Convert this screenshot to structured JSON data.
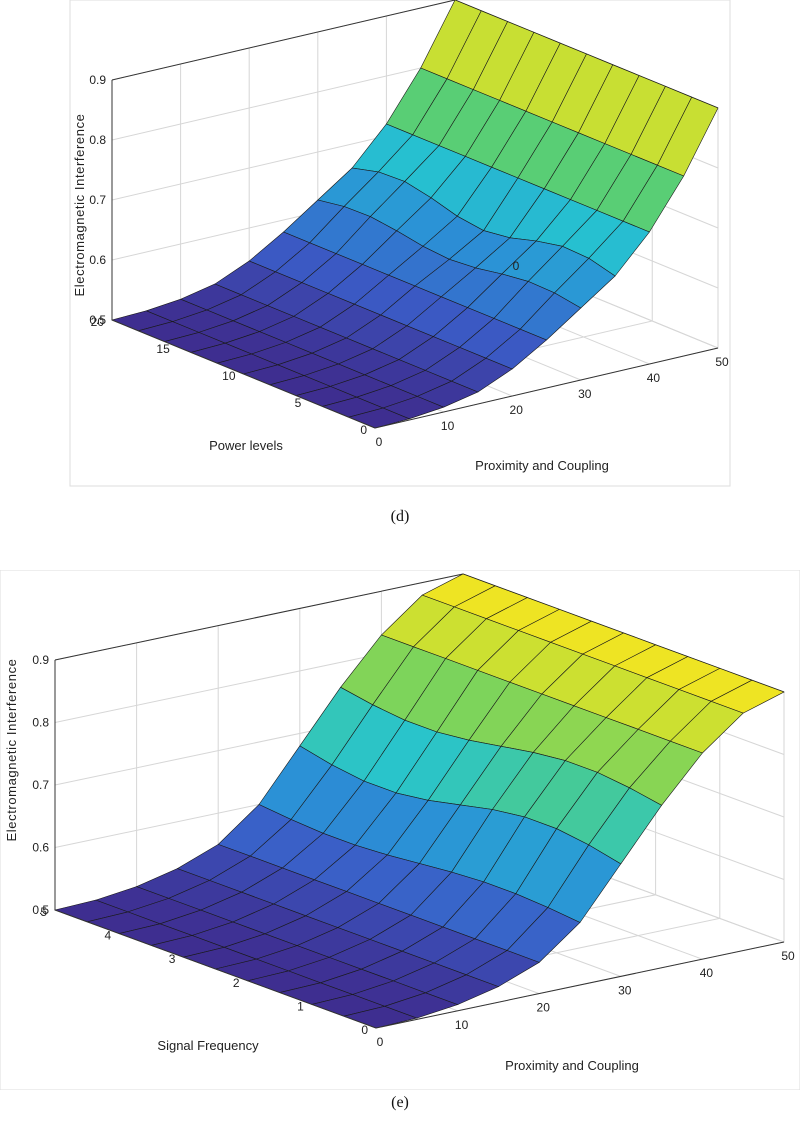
{
  "chart_data": [
    {
      "type": "surface3d",
      "panel": "d",
      "caption": "(d)",
      "xlabel": "Proximity and Coupling",
      "ylabel": "Power levels",
      "zlabel": "Electromagnetic Interference",
      "xlim": [
        0,
        50
      ],
      "ylim": [
        0,
        20
      ],
      "zlim": [
        0.5,
        0.9
      ],
      "xticks": [
        "0",
        "10",
        "20",
        "30",
        "40",
        "50"
      ],
      "yticks": [
        "0",
        "5",
        "10",
        "15",
        "20"
      ],
      "zticks": [
        "0.5",
        "0.6",
        "0.7",
        "0.8",
        "0.9"
      ],
      "annotation": "0",
      "surface": {
        "x": [
          0,
          5,
          10,
          15,
          20,
          25,
          30,
          35,
          40,
          45,
          50
        ],
        "y": [
          0,
          2,
          4,
          6,
          8,
          10,
          12,
          14,
          16,
          18,
          20
        ],
        "z_by_x": [
          0.5,
          0.502,
          0.508,
          0.52,
          0.545,
          0.58,
          0.62,
          0.66,
          0.72,
          0.8,
          0.9
        ],
        "description": "EMI rises with proximity and coupling; roughly flat across power levels"
      },
      "colormap": [
        "#3e2d8f",
        "#3b5cc6",
        "#2b8fd6",
        "#26c3d0",
        "#5fcf6b",
        "#b8dd3a",
        "#f7e51f"
      ]
    },
    {
      "type": "surface3d",
      "panel": "e",
      "caption": "(e)",
      "xlabel": "Proximity and Coupling",
      "ylabel": "Signal Frequency",
      "zlabel": "Electromagnetic Interference",
      "xlim": [
        0,
        50
      ],
      "ylim": [
        0,
        5
      ],
      "zlim": [
        0.5,
        0.9
      ],
      "xticks": [
        "0",
        "10",
        "20",
        "30",
        "40",
        "50"
      ],
      "yticks": [
        "0",
        "1",
        "2",
        "3",
        "4",
        "5"
      ],
      "zticks": [
        "0.5",
        "0.6",
        "0.7",
        "0.8",
        "0.9"
      ],
      "surface": {
        "x": [
          0,
          5,
          10,
          15,
          20,
          25,
          30,
          35,
          40,
          45,
          50
        ],
        "y": [
          0,
          0.5,
          1,
          1.5,
          2,
          2.5,
          3,
          3.5,
          4,
          4.5,
          5
        ],
        "z_by_x": [
          0.5,
          0.502,
          0.51,
          0.525,
          0.55,
          0.6,
          0.68,
          0.76,
          0.83,
          0.88,
          0.9
        ],
        "description": "EMI rises steeply with proximity and coupling; roughly flat across signal frequency"
      },
      "colormap": [
        "#3e2d8f",
        "#3b5cc6",
        "#2b8fd6",
        "#26c3d0",
        "#5fcf6b",
        "#b8dd3a",
        "#f7e51f"
      ]
    }
  ]
}
